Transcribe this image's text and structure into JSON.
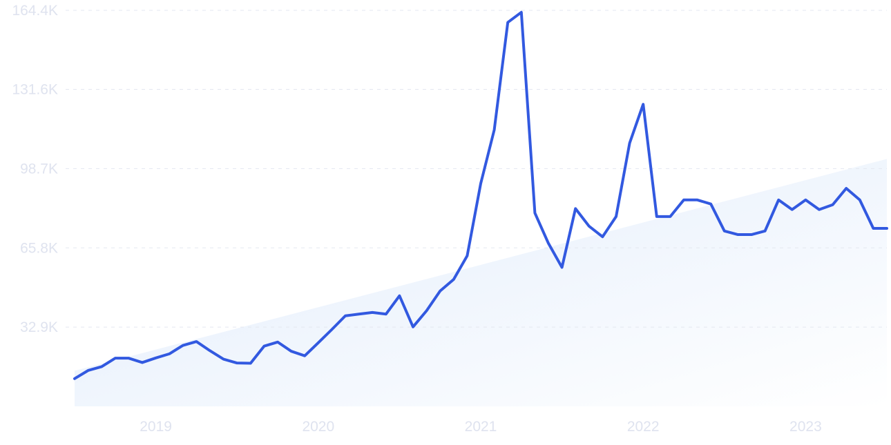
{
  "chart_data": {
    "type": "line",
    "title": "",
    "xlabel": "",
    "ylabel": "",
    "x_ticks": [
      "2019",
      "2020",
      "2021",
      "2022",
      "2023"
    ],
    "y_ticks": [
      "32.9K",
      "65.8K",
      "98.7K",
      "131.6K",
      "164.4K"
    ],
    "ylim": [
      0,
      164400
    ],
    "grid": true,
    "trend_line": true,
    "colors": {
      "line": "#3259e0",
      "trend_fill": "#e3edfb",
      "grid": "#e3e7f0",
      "tick_text": "#dfe3ef"
    },
    "series": [
      {
        "x": [
          "2018-07",
          "2018-08",
          "2018-09",
          "2018-10",
          "2018-11",
          "2018-12",
          "2019-01",
          "2019-02",
          "2019-03",
          "2019-04",
          "2019-05",
          "2019-06",
          "2019-07",
          "2019-08",
          "2019-09",
          "2019-10",
          "2019-11",
          "2019-12",
          "2020-01",
          "2020-02",
          "2020-03",
          "2020-04",
          "2020-05",
          "2020-06",
          "2020-07",
          "2020-08",
          "2020-09",
          "2020-10",
          "2020-11",
          "2020-12",
          "2021-01",
          "2021-02",
          "2021-03",
          "2021-04",
          "2021-05",
          "2021-06",
          "2021-07",
          "2021-08",
          "2021-09",
          "2021-10",
          "2021-11",
          "2021-12",
          "2022-01",
          "2022-02",
          "2022-03",
          "2022-04",
          "2022-05",
          "2022-06",
          "2022-07",
          "2022-08",
          "2022-09",
          "2022-10",
          "2022-11",
          "2022-12",
          "2023-01",
          "2023-02",
          "2023-03",
          "2023-04",
          "2023-05",
          "2023-06",
          "2023-07"
        ],
        "values": [
          11500,
          14900,
          16500,
          20000,
          20000,
          18200,
          20100,
          21800,
          25300,
          26900,
          23100,
          19600,
          18000,
          17900,
          25000,
          26700,
          22900,
          21000,
          26400,
          31900,
          37600,
          38300,
          39000,
          38300,
          45900,
          33000,
          39700,
          47900,
          52700,
          62500,
          92500,
          114800,
          159400,
          163600,
          80300,
          67700,
          57700,
          82100,
          74800,
          70400,
          78800,
          109300,
          125400,
          78800,
          78800,
          85700,
          85700,
          84000,
          72800,
          71300,
          71300,
          72800,
          85700,
          81700,
          85700,
          81700,
          83700,
          90500,
          85700,
          73900,
          73900
        ]
      }
    ]
  }
}
